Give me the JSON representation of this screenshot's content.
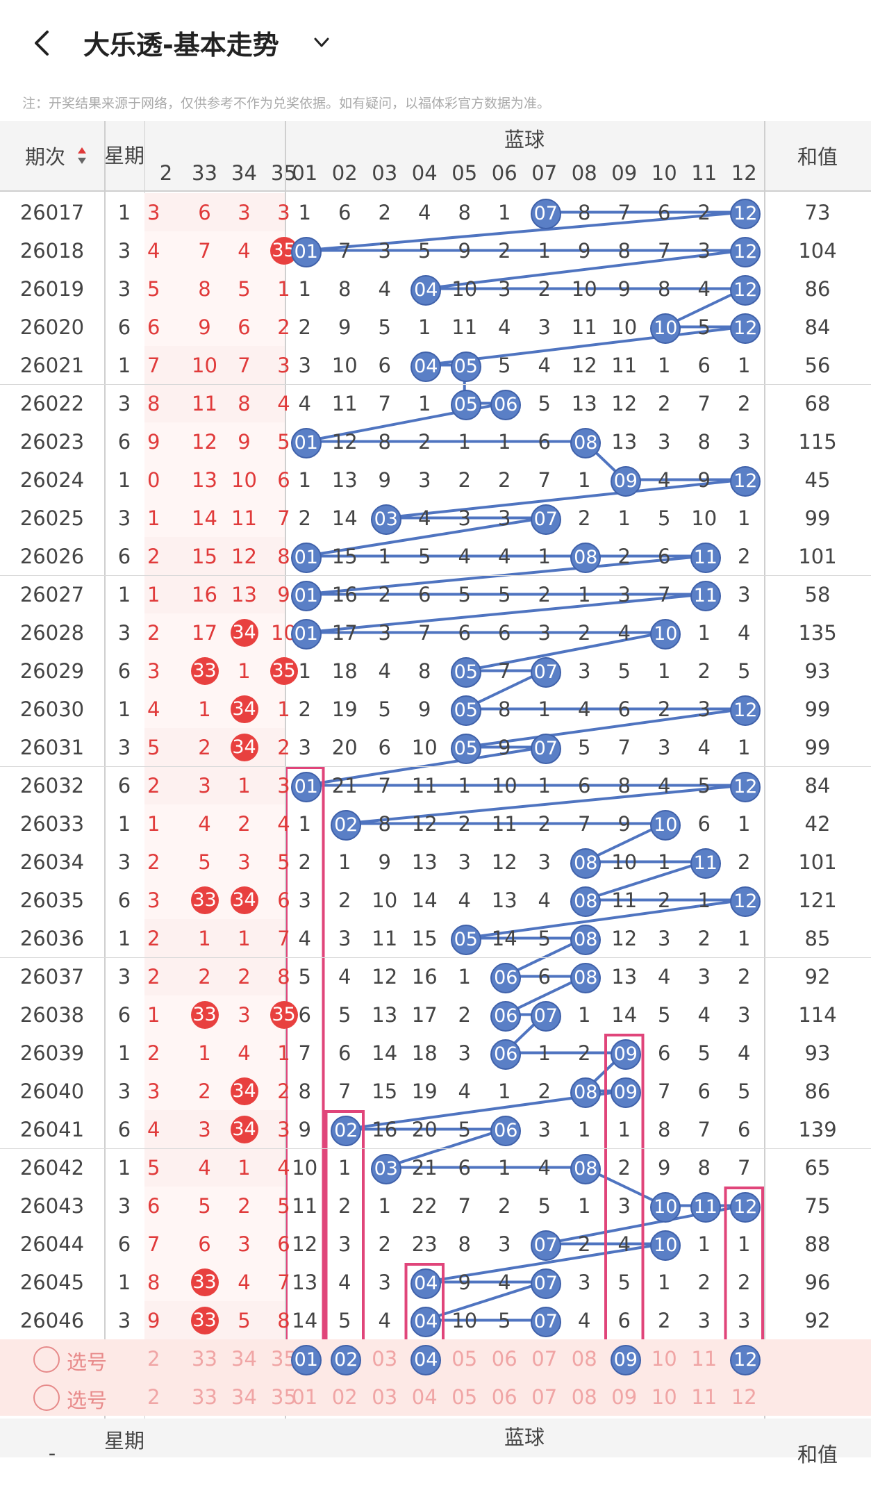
{
  "header": {
    "title": "大乐透-基本走势",
    "notice": "注：开奖结果来源于网络，仅供参考不作为兑奖依据。如有疑问，以福体彩官方数据为准。"
  },
  "table_header": {
    "period_label": "期次",
    "week_label": "星期",
    "blue_group_label": "蓝球",
    "sum_label": "和值",
    "red_cols": [
      "2",
      "33",
      "34",
      "35"
    ],
    "blue_cols": [
      "01",
      "02",
      "03",
      "04",
      "05",
      "06",
      "07",
      "08",
      "09",
      "10",
      "11",
      "12"
    ]
  },
  "rows": [
    {
      "period": "26017",
      "week": "1",
      "red": [
        "3",
        "6",
        "3",
        "3"
      ],
      "blue": [
        "1",
        "6",
        "2",
        "4",
        "8",
        "1",
        "07",
        "8",
        "7",
        "6",
        "2",
        "12"
      ],
      "sum": "73"
    },
    {
      "period": "26018",
      "week": "3",
      "red": [
        "4",
        "7",
        "4",
        "35"
      ],
      "blue": [
        "01",
        "7",
        "3",
        "5",
        "9",
        "2",
        "1",
        "9",
        "8",
        "7",
        "3",
        "12"
      ],
      "sum": "104"
    },
    {
      "period": "26019",
      "week": "3",
      "red": [
        "5",
        "8",
        "5",
        "1"
      ],
      "blue": [
        "1",
        "8",
        "4",
        "04",
        "10",
        "3",
        "2",
        "10",
        "9",
        "8",
        "4",
        "12"
      ],
      "sum": "86"
    },
    {
      "period": "26020",
      "week": "6",
      "red": [
        "6",
        "9",
        "6",
        "2"
      ],
      "blue": [
        "2",
        "9",
        "5",
        "1",
        "11",
        "4",
        "3",
        "11",
        "10",
        "10",
        "5",
        "12"
      ],
      "sum": "84"
    },
    {
      "period": "26021",
      "week": "1",
      "red": [
        "7",
        "10",
        "7",
        "3"
      ],
      "blue": [
        "3",
        "10",
        "6",
        "04",
        "05",
        "5",
        "4",
        "12",
        "11",
        "1",
        "6",
        "1"
      ],
      "sum": "56"
    },
    {
      "period": "26022",
      "week": "3",
      "red": [
        "8",
        "11",
        "8",
        "4"
      ],
      "blue": [
        "4",
        "11",
        "7",
        "1",
        "05",
        "06",
        "5",
        "13",
        "12",
        "2",
        "7",
        "2"
      ],
      "sum": "68"
    },
    {
      "period": "26023",
      "week": "6",
      "red": [
        "9",
        "12",
        "9",
        "5"
      ],
      "blue": [
        "01",
        "12",
        "8",
        "2",
        "1",
        "1",
        "6",
        "08",
        "13",
        "3",
        "8",
        "3"
      ],
      "sum": "115"
    },
    {
      "period": "26024",
      "week": "1",
      "red": [
        "0",
        "13",
        "10",
        "6"
      ],
      "blue": [
        "1",
        "13",
        "9",
        "3",
        "2",
        "2",
        "7",
        "1",
        "09",
        "4",
        "9",
        "12"
      ],
      "sum": "45"
    },
    {
      "period": "26025",
      "week": "3",
      "red": [
        "1",
        "14",
        "11",
        "7"
      ],
      "blue": [
        "2",
        "14",
        "03",
        "4",
        "3",
        "3",
        "07",
        "2",
        "1",
        "5",
        "10",
        "1"
      ],
      "sum": "99"
    },
    {
      "period": "26026",
      "week": "6",
      "red": [
        "2",
        "15",
        "12",
        "8"
      ],
      "blue": [
        "01",
        "15",
        "1",
        "5",
        "4",
        "4",
        "1",
        "08",
        "2",
        "6",
        "11",
        "2"
      ],
      "sum": "101"
    },
    {
      "period": "26027",
      "week": "1",
      "red": [
        "1",
        "16",
        "13",
        "9"
      ],
      "blue": [
        "01",
        "16",
        "2",
        "6",
        "5",
        "5",
        "2",
        "1",
        "3",
        "7",
        "11",
        "3"
      ],
      "sum": "58"
    },
    {
      "period": "26028",
      "week": "3",
      "red": [
        "2",
        "17",
        "34",
        "10"
      ],
      "blue": [
        "01",
        "17",
        "3",
        "7",
        "6",
        "6",
        "3",
        "2",
        "4",
        "10",
        "1",
        "4"
      ],
      "sum": "135"
    },
    {
      "period": "26029",
      "week": "6",
      "red": [
        "3",
        "33",
        "1",
        "35"
      ],
      "blue": [
        "1",
        "18",
        "4",
        "8",
        "05",
        "7",
        "07",
        "3",
        "5",
        "1",
        "2",
        "5"
      ],
      "sum": "93"
    },
    {
      "period": "26030",
      "week": "1",
      "red": [
        "4",
        "1",
        "34",
        "1"
      ],
      "blue": [
        "2",
        "19",
        "5",
        "9",
        "05",
        "8",
        "1",
        "4",
        "6",
        "2",
        "3",
        "12"
      ],
      "sum": "99"
    },
    {
      "period": "26031",
      "week": "3",
      "red": [
        "5",
        "2",
        "34",
        "2"
      ],
      "blue": [
        "3",
        "20",
        "6",
        "10",
        "05",
        "9",
        "07",
        "5",
        "7",
        "3",
        "4",
        "1"
      ],
      "sum": "99"
    },
    {
      "period": "26032",
      "week": "6",
      "red": [
        "2",
        "3",
        "1",
        "3"
      ],
      "blue": [
        "01",
        "21",
        "7",
        "11",
        "1",
        "10",
        "1",
        "6",
        "8",
        "4",
        "5",
        "12"
      ],
      "sum": "84"
    },
    {
      "period": "26033",
      "week": "1",
      "red": [
        "1",
        "4",
        "2",
        "4"
      ],
      "blue": [
        "1",
        "02",
        "8",
        "12",
        "2",
        "11",
        "2",
        "7",
        "9",
        "10",
        "6",
        "1"
      ],
      "sum": "42"
    },
    {
      "period": "26034",
      "week": "3",
      "red": [
        "2",
        "5",
        "3",
        "5"
      ],
      "blue": [
        "2",
        "1",
        "9",
        "13",
        "3",
        "12",
        "3",
        "08",
        "10",
        "1",
        "11",
        "2"
      ],
      "sum": "101"
    },
    {
      "period": "26035",
      "week": "6",
      "red": [
        "3",
        "33",
        "34",
        "6"
      ],
      "blue": [
        "3",
        "2",
        "10",
        "14",
        "4",
        "13",
        "4",
        "08",
        "11",
        "2",
        "1",
        "12"
      ],
      "sum": "121"
    },
    {
      "period": "26036",
      "week": "1",
      "red": [
        "2",
        "1",
        "1",
        "7"
      ],
      "blue": [
        "4",
        "3",
        "11",
        "15",
        "05",
        "14",
        "5",
        "08",
        "12",
        "3",
        "2",
        "1"
      ],
      "sum": "85"
    },
    {
      "period": "26037",
      "week": "3",
      "red": [
        "2",
        "2",
        "2",
        "8"
      ],
      "blue": [
        "5",
        "4",
        "12",
        "16",
        "1",
        "06",
        "6",
        "08",
        "13",
        "4",
        "3",
        "2"
      ],
      "sum": "92"
    },
    {
      "period": "26038",
      "week": "6",
      "red": [
        "1",
        "33",
        "3",
        "35"
      ],
      "blue": [
        "6",
        "5",
        "13",
        "17",
        "2",
        "06",
        "07",
        "1",
        "14",
        "5",
        "4",
        "3"
      ],
      "sum": "114"
    },
    {
      "period": "26039",
      "week": "1",
      "red": [
        "2",
        "1",
        "4",
        "1"
      ],
      "blue": [
        "7",
        "6",
        "14",
        "18",
        "3",
        "06",
        "1",
        "2",
        "09",
        "6",
        "5",
        "4"
      ],
      "sum": "93"
    },
    {
      "period": "26040",
      "week": "3",
      "red": [
        "3",
        "2",
        "34",
        "2"
      ],
      "blue": [
        "8",
        "7",
        "15",
        "19",
        "4",
        "1",
        "2",
        "08",
        "09",
        "7",
        "6",
        "5"
      ],
      "sum": "86"
    },
    {
      "period": "26041",
      "week": "6",
      "red": [
        "4",
        "3",
        "34",
        "3"
      ],
      "blue": [
        "9",
        "02",
        "16",
        "20",
        "5",
        "06",
        "3",
        "1",
        "1",
        "8",
        "7",
        "6"
      ],
      "sum": "139"
    },
    {
      "period": "26042",
      "week": "1",
      "red": [
        "5",
        "4",
        "1",
        "4"
      ],
      "blue": [
        "10",
        "1",
        "03",
        "21",
        "6",
        "1",
        "4",
        "08",
        "2",
        "9",
        "8",
        "7"
      ],
      "sum": "65"
    },
    {
      "period": "26043",
      "week": "3",
      "red": [
        "6",
        "5",
        "2",
        "5"
      ],
      "blue": [
        "11",
        "2",
        "1",
        "22",
        "7",
        "2",
        "5",
        "1",
        "3",
        "10",
        "11",
        "12"
      ],
      "sum": "75"
    },
    {
      "period": "26044",
      "week": "6",
      "red": [
        "7",
        "6",
        "3",
        "6"
      ],
      "blue": [
        "12",
        "3",
        "2",
        "23",
        "8",
        "3",
        "07",
        "2",
        "4",
        "10",
        "1",
        "1"
      ],
      "sum": "88"
    },
    {
      "period": "26045",
      "week": "1",
      "red": [
        "8",
        "33",
        "4",
        "7"
      ],
      "blue": [
        "13",
        "4",
        "3",
        "04",
        "9",
        "4",
        "07",
        "3",
        "5",
        "1",
        "2",
        "2"
      ],
      "sum": "96"
    },
    {
      "period": "26046",
      "week": "3",
      "red": [
        "9",
        "33",
        "5",
        "8"
      ],
      "blue": [
        "14",
        "5",
        "4",
        "04",
        "10",
        "5",
        "07",
        "4",
        "6",
        "2",
        "3",
        "3"
      ],
      "sum": "92"
    }
  ],
  "pick_rows": [
    {
      "label": "选号",
      "red": [
        "2",
        "33",
        "34",
        "35"
      ],
      "blue": [
        "01",
        "02",
        "03",
        "04",
        "05",
        "06",
        "07",
        "08",
        "09",
        "10",
        "11",
        "12"
      ]
    },
    {
      "label": "选号",
      "red": [
        "2",
        "33",
        "34",
        "35"
      ],
      "blue": [
        "01",
        "02",
        "03",
        "04",
        "05",
        "06",
        "07",
        "08",
        "09",
        "10",
        "11",
        "12"
      ]
    }
  ],
  "bottom_header": {
    "period_label": "-",
    "week_label": "星期",
    "blue_group_label": "蓝球",
    "sum_label": "和值"
  },
  "colors": {
    "red_ball": "#e8403f",
    "blue_ball": "#5a7fc6",
    "highlight_box": "#e0457a",
    "pick_row_bg": "#fde9e6"
  }
}
